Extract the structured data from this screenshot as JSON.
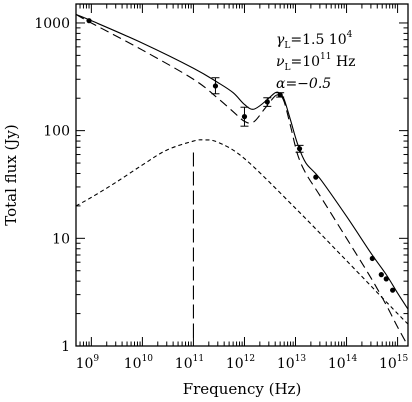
{
  "chart_data": {
    "type": "line",
    "title": "",
    "xlabel": "Frequency (Hz)",
    "ylabel": "Total flux (Jy)",
    "x_scale": "log",
    "y_scale": "log",
    "xlim": [
      500000000.0,
      1600000000000000.0
    ],
    "ylim": [
      1,
      1500
    ],
    "grid": false,
    "x_ticks": [
      {
        "value": 1000000000.0,
        "base": "10",
        "exp": "9"
      },
      {
        "value": 10000000000.0,
        "base": "10",
        "exp": "10"
      },
      {
        "value": 100000000000.0,
        "base": "10",
        "exp": "11"
      },
      {
        "value": 1000000000000.0,
        "base": "10",
        "exp": "12"
      },
      {
        "value": 10000000000000.0,
        "base": "10",
        "exp": "13"
      },
      {
        "value": 100000000000000.0,
        "base": "10",
        "exp": "14"
      },
      {
        "value": 1000000000000000.0,
        "base": "10",
        "exp": "15"
      }
    ],
    "y_ticks": [
      {
        "value": 1,
        "label": "1"
      },
      {
        "value": 10,
        "label": "10"
      },
      {
        "value": 100,
        "label": "100"
      },
      {
        "value": 1000,
        "label": "1000"
      }
    ],
    "annotations": [
      {
        "main": "γ",
        "sub": "L",
        "rest": "=1.5  10",
        "sup": "4"
      },
      {
        "main": "ν",
        "sub": "L",
        "rest": "=10",
        "sup": "11",
        "tail": "  Hz"
      },
      {
        "main": "α=−0.5",
        "sub": "",
        "rest": "",
        "sup": ""
      }
    ],
    "vertical_marker": {
      "x": 100000000000.0,
      "y_range": [
        1.2,
        65
      ],
      "style": "long-dash"
    },
    "points": [
      {
        "x": 900000000.0,
        "y": 1050
      },
      {
        "x": 270000000000.0,
        "y": 260,
        "err_low": 220,
        "err_high": 310
      },
      {
        "x": 1000000000000.0,
        "y": 135,
        "err_low": 110,
        "err_high": 165
      },
      {
        "x": 2800000000000.0,
        "y": 185,
        "err_low": 168,
        "err_high": 202
      },
      {
        "x": 5000000000000.0,
        "y": 215,
        "err_low": 205,
        "err_high": 225
      },
      {
        "x": 12000000000000.0,
        "y": 68,
        "err_low": 63,
        "err_high": 73
      },
      {
        "x": 25000000000000.0,
        "y": 37
      },
      {
        "x": 320000000000000.0,
        "y": 6.5
      },
      {
        "x": 480000000000000.0,
        "y": 4.6
      },
      {
        "x": 600000000000000.0,
        "y": 4.2
      },
      {
        "x": 800000000000000.0,
        "y": 3.3
      }
    ],
    "series": [
      {
        "style": "solid",
        "x": [
          500000000.0,
          1000000000.0,
          10000000000.0,
          100000000000.0,
          300000000000.0,
          600000000000.0,
          1000000000000.0,
          1500000000000.0,
          2500000000000.0,
          4000000000000.0,
          5000000000000.0,
          6000000000000.0,
          8000000000000.0,
          11000000000000.0,
          16000000000000.0,
          30000000000000.0,
          100000000000000.0,
          300000000000000.0,
          600000000000000.0,
          1000000000000000.0,
          1600000000000000.0
        ],
        "y": [
          1200,
          1050,
          650,
          380,
          280,
          225,
          175,
          158,
          185,
          225,
          220,
          195,
          125,
          75,
          50,
          36,
          16,
          7.3,
          4.6,
          3.1,
          2.2
        ]
      },
      {
        "style": "long-dash",
        "x": [
          500000000.0,
          1000000000.0,
          10000000000.0,
          100000000000.0,
          300000000000.0,
          600000000000.0,
          1000000000000.0,
          1500000000000.0,
          2500000000000.0,
          4000000000000.0,
          5000000000000.0,
          6000000000000.0,
          8000000000000.0,
          11000000000000.0,
          16000000000000.0,
          30000000000000.0,
          100000000000000.0,
          300000000000000.0,
          600000000000000.0,
          1000000000000000.0,
          1600000000000000.0
        ],
        "y": [
          1200,
          1000,
          560,
          300,
          200,
          150,
          122,
          120,
          160,
          210,
          210,
          185,
          110,
          60,
          40,
          25,
          10,
          4.3,
          2.4,
          1.5,
          1.0
        ]
      },
      {
        "style": "short-dash",
        "x": [
          500000000.0,
          1000000000.0,
          3000000000.0,
          10000000000.0,
          30000000000.0,
          100000000000.0,
          160000000000.0,
          300000000000.0,
          1000000000000.0,
          10000000000000.0,
          100000000000000.0,
          1000000000000000.0,
          1600000000000000.0
        ],
        "y": [
          20,
          24,
          33,
          48,
          66,
          80,
          82,
          78,
          55,
          19,
          6.2,
          2.0,
          1.6
        ]
      }
    ]
  }
}
